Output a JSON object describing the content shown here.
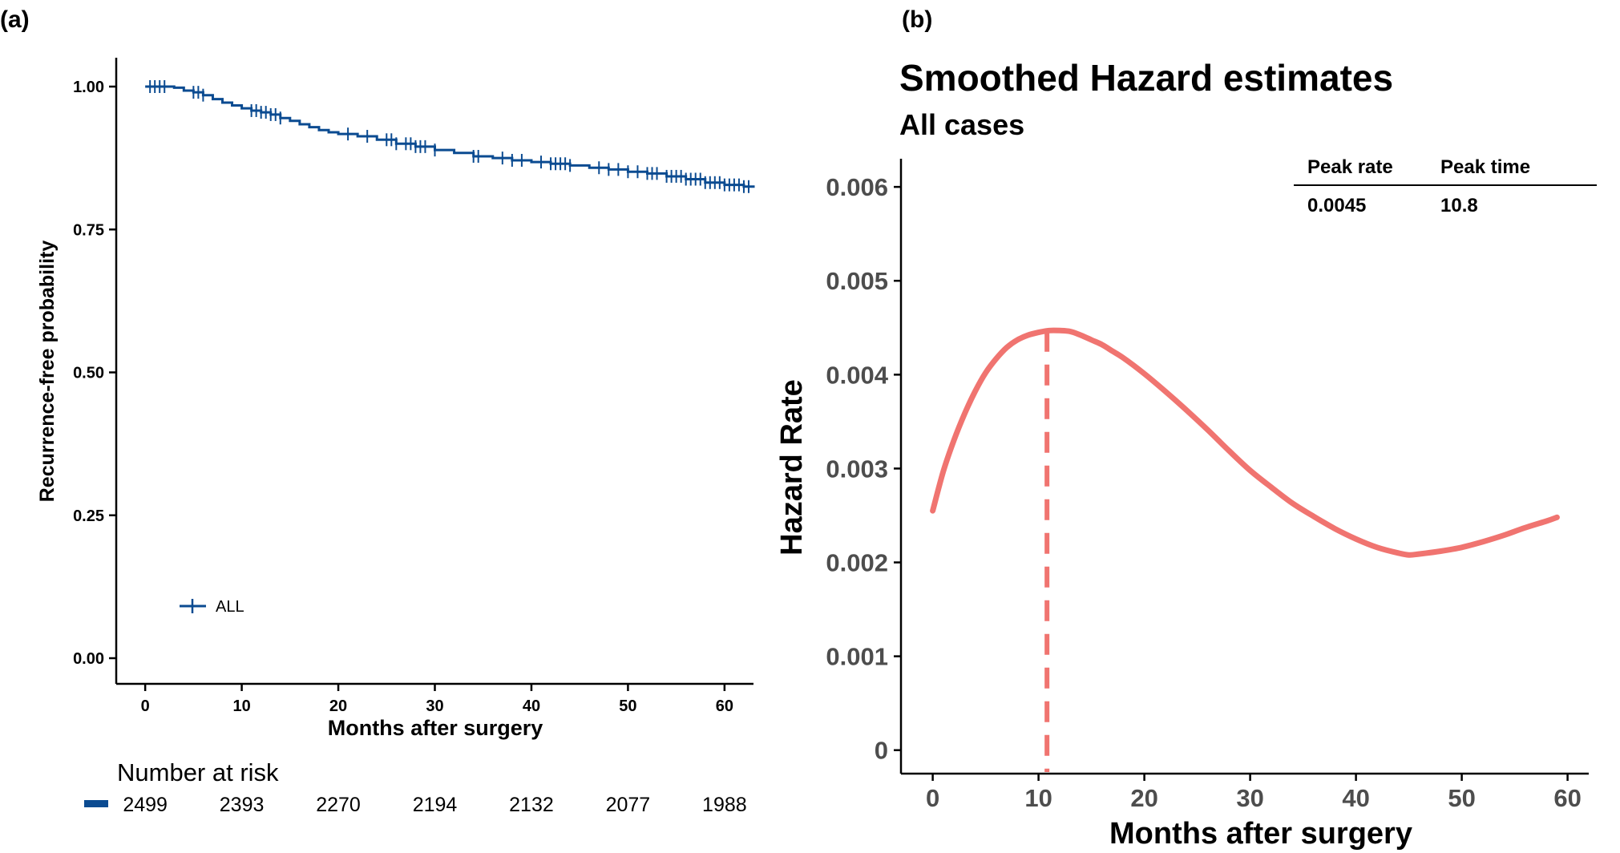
{
  "panel_labels": [
    "(a)",
    "(b)"
  ],
  "colors": {
    "km": "#0B4B91",
    "hazard": "#F07470",
    "axis": "#000000",
    "tick_text_a": "#000000",
    "tick_text_b": "#4D4D4D"
  },
  "chart_data": [
    {
      "type": "line",
      "panel": "(a)",
      "title": "",
      "xlabel": "Months after surgery",
      "ylabel": "Recurrence-free probability",
      "xlim": [
        -3,
        63
      ],
      "ylim": [
        0,
        1
      ],
      "x_ticks": [
        0,
        10,
        20,
        30,
        40,
        50,
        60
      ],
      "y_ticks": [
        0,
        0.25,
        0.5,
        0.75,
        1
      ],
      "y_tick_labels": [
        "0.00",
        "0.25",
        "0.50",
        "0.75",
        "1.00"
      ],
      "grid": false,
      "legend": {
        "label": "ALL",
        "placement": "lower-left"
      },
      "series": [
        {
          "name": "ALL",
          "x": [
            0,
            2,
            3,
            4,
            5,
            6,
            7,
            8,
            9,
            10,
            11,
            12,
            13,
            14,
            15,
            16,
            17,
            18,
            19,
            20,
            22,
            24,
            26,
            28,
            30,
            32,
            34,
            36,
            38,
            40,
            42,
            44,
            46,
            48,
            50,
            52,
            54,
            56,
            58,
            60,
            62,
            63
          ],
          "values": [
            1.0,
            1.0,
            0.998,
            0.993,
            0.99,
            0.985,
            0.978,
            0.972,
            0.967,
            0.962,
            0.958,
            0.955,
            0.951,
            0.945,
            0.94,
            0.934,
            0.929,
            0.924,
            0.92,
            0.917,
            0.913,
            0.907,
            0.9,
            0.895,
            0.889,
            0.884,
            0.878,
            0.875,
            0.871,
            0.868,
            0.865,
            0.862,
            0.858,
            0.855,
            0.851,
            0.848,
            0.843,
            0.838,
            0.832,
            0.828,
            0.825,
            0.823
          ]
        }
      ],
      "censor_times": [
        0.5,
        1,
        1.5,
        2,
        5,
        5.5,
        6,
        11,
        11.5,
        12,
        12.5,
        13,
        13.5,
        14,
        21,
        23,
        25,
        25.5,
        26,
        27,
        27.5,
        28,
        28.5,
        29,
        30,
        34,
        34.5,
        37,
        38,
        39,
        41,
        42,
        42.5,
        43,
        43.5,
        44,
        47,
        48,
        49,
        50,
        51,
        52,
        52.5,
        53,
        54,
        54.5,
        55,
        55.5,
        56,
        56.5,
        57,
        57.5,
        58,
        58.5,
        59,
        59.5,
        60,
        60.5,
        61,
        61.5,
        62,
        62.5
      ],
      "risk_table": {
        "title": "Number at risk",
        "times": [
          0,
          10,
          20,
          30,
          40,
          50,
          60
        ],
        "counts": [
          "2499",
          "2393",
          "2270",
          "2194",
          "2132",
          "2077",
          "1988"
        ]
      }
    },
    {
      "type": "line",
      "panel": "(b)",
      "title": "Smoothed Hazard estimates",
      "subtitle": "All cases",
      "xlabel": "Months after surgery",
      "ylabel": "Hazard Rate",
      "xlim": [
        -3,
        62
      ],
      "ylim": [
        -0.00025,
        0.0063
      ],
      "x_ticks": [
        0,
        10,
        20,
        30,
        40,
        50,
        60
      ],
      "y_ticks": [
        0,
        0.001,
        0.002,
        0.003,
        0.004,
        0.005,
        0.006
      ],
      "y_tick_labels": [
        "0",
        "0.001",
        "0.002",
        "0.003",
        "0.004",
        "0.005",
        "0.006"
      ],
      "grid": false,
      "series": [
        {
          "name": "Hazard",
          "x": [
            0,
            1,
            2,
            3,
            4,
            5,
            6,
            7,
            8,
            9,
            10,
            11,
            12,
            13,
            14,
            15,
            16,
            17,
            18,
            20,
            22,
            24,
            26,
            28,
            30,
            32,
            34,
            36,
            38,
            40,
            42,
            44,
            45,
            46,
            48,
            50,
            52,
            54,
            56,
            58,
            59
          ],
          "values": [
            0.00255,
            0.00297,
            0.0033,
            0.00358,
            0.00382,
            0.00402,
            0.00417,
            0.00429,
            0.00437,
            0.00442,
            0.00445,
            0.00447,
            0.00447,
            0.00446,
            0.00442,
            0.00437,
            0.00432,
            0.00425,
            0.00418,
            0.00401,
            0.00382,
            0.00362,
            0.00341,
            0.00319,
            0.00298,
            0.0028,
            0.00263,
            0.00249,
            0.00236,
            0.00225,
            0.00216,
            0.0021,
            0.00208,
            0.00209,
            0.00212,
            0.00216,
            0.00222,
            0.00229,
            0.00237,
            0.00244,
            0.00248
          ]
        }
      ],
      "peak_line_x": 10.8,
      "peak_table": {
        "headers": [
          "Peak rate",
          "Peak time"
        ],
        "values": [
          "0.0045",
          "10.8"
        ]
      }
    }
  ]
}
